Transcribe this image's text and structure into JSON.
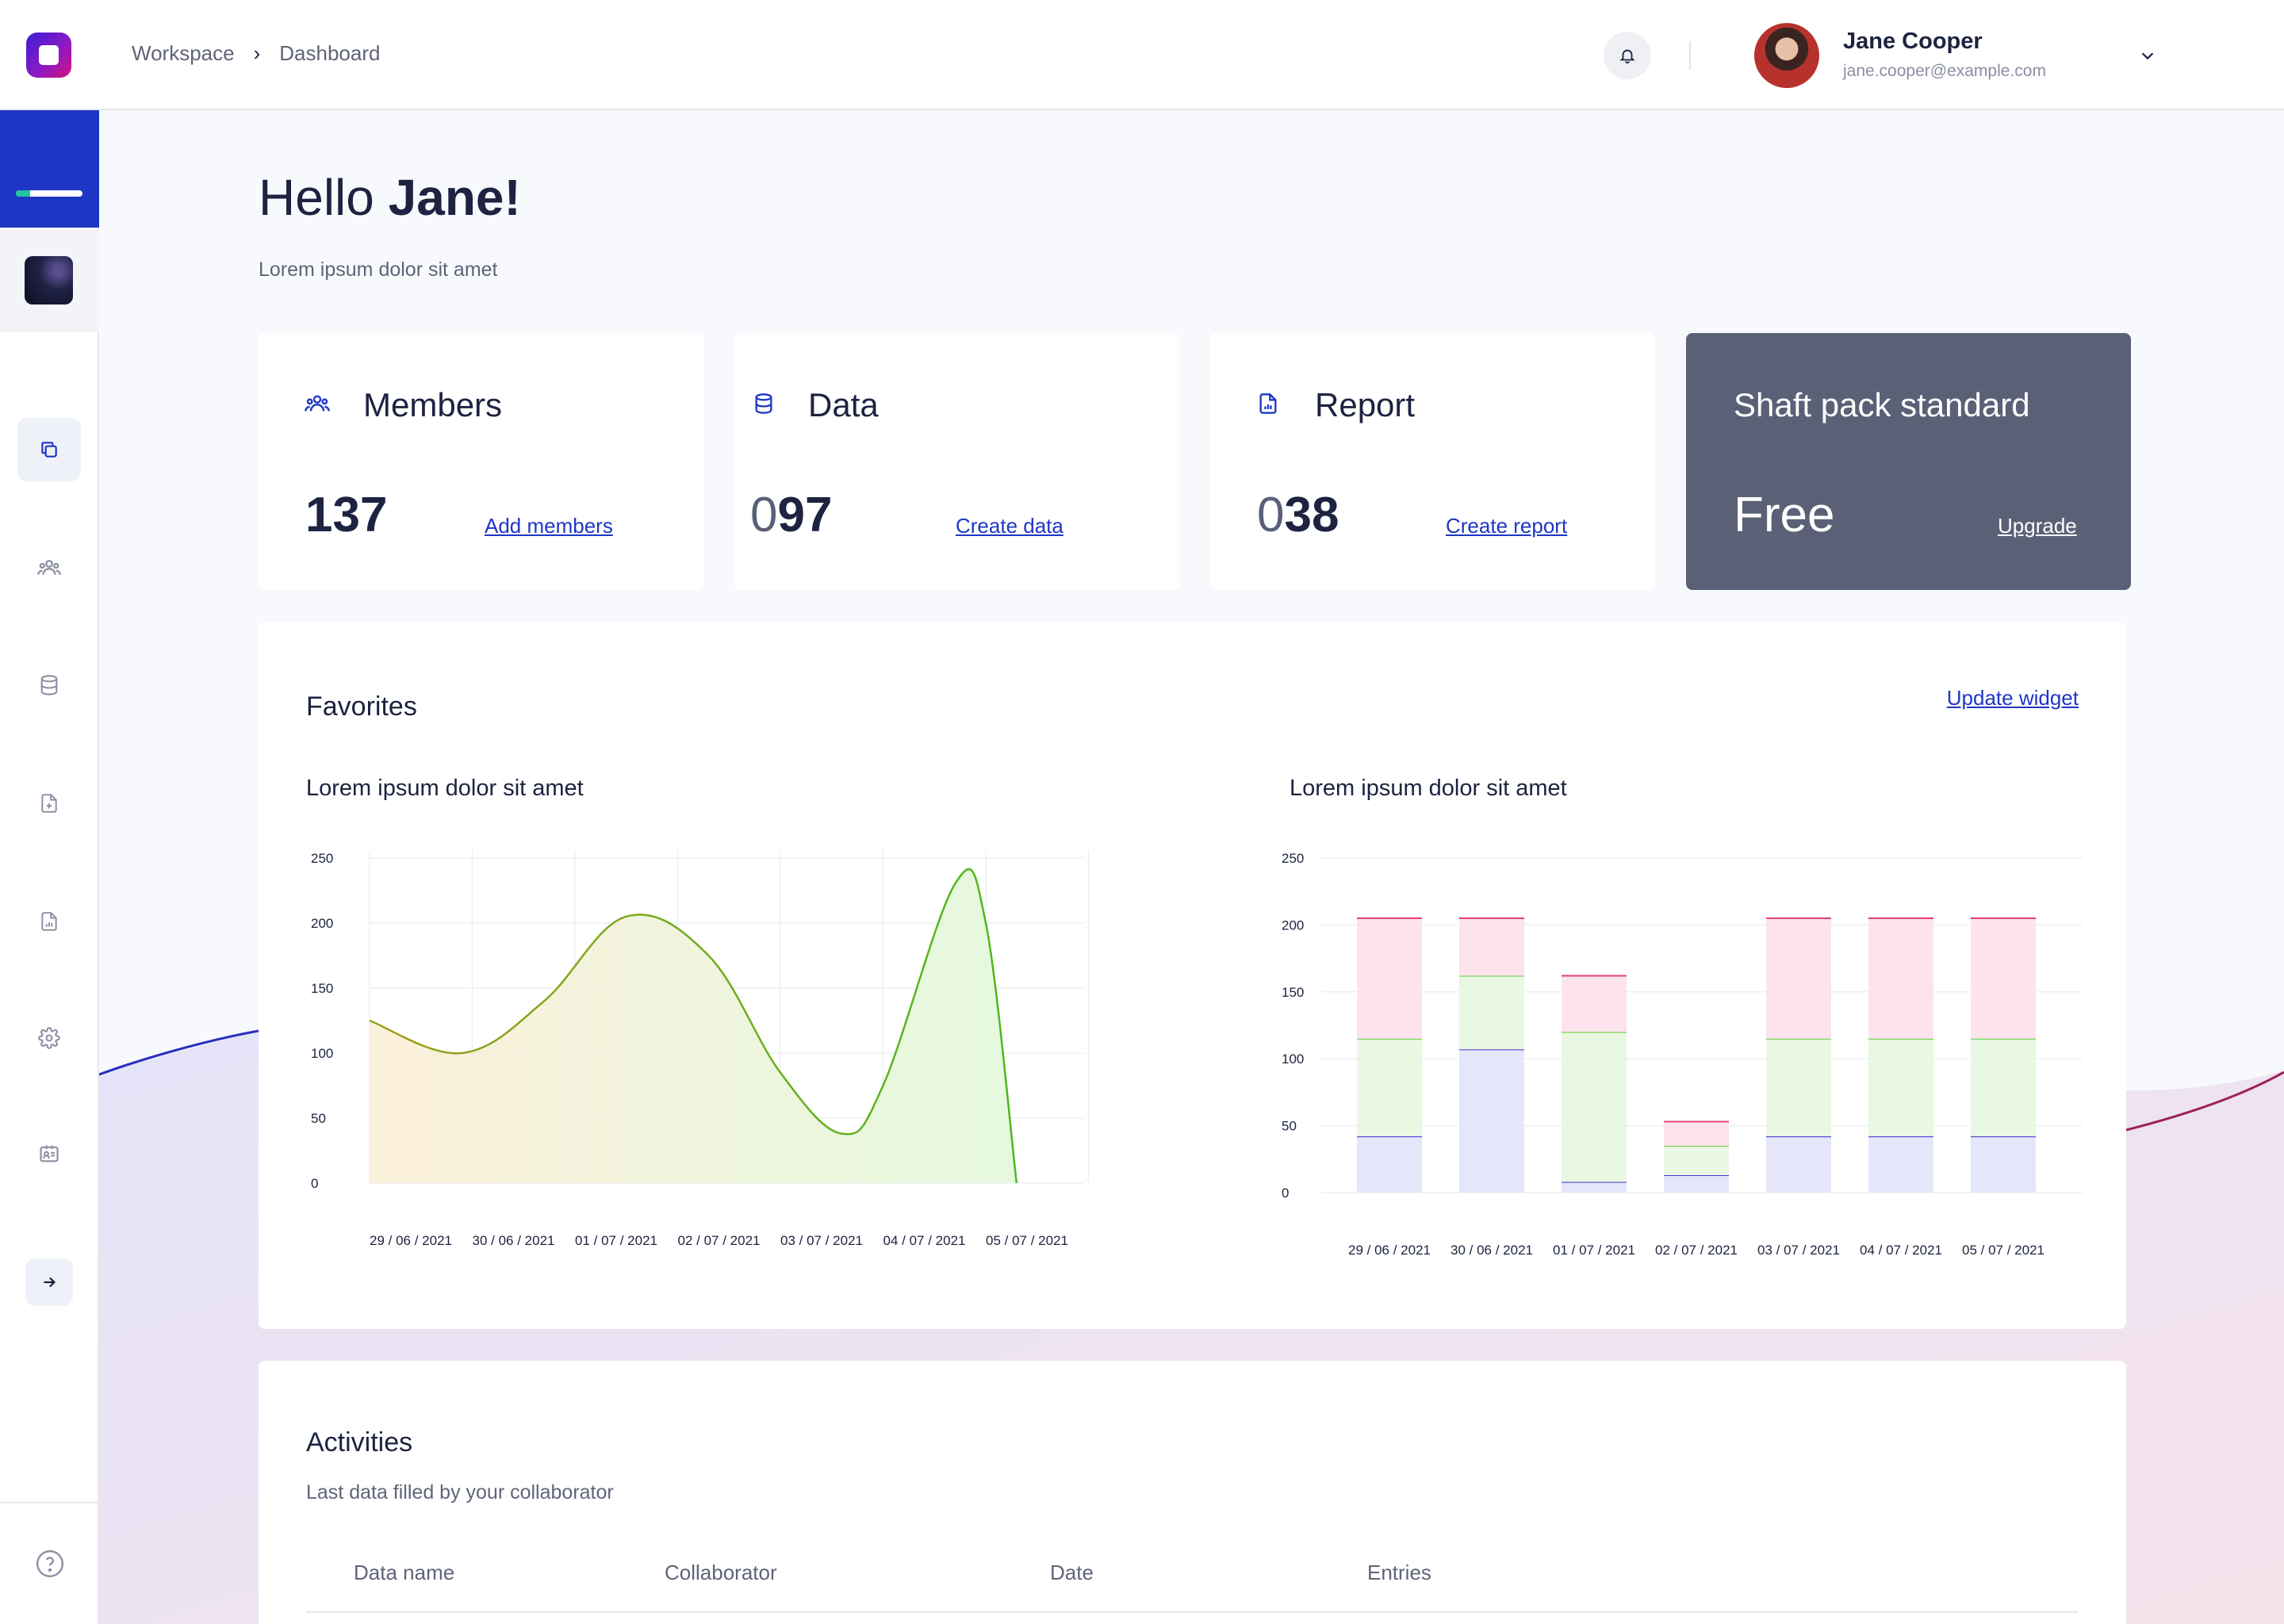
{
  "breadcrumb": {
    "workspace": "Workspace",
    "separator": "›",
    "current": "Dashboard"
  },
  "user": {
    "name": "Jane Cooper",
    "email": "jane.cooper@example.com"
  },
  "sidebar": {
    "progress": 0.22
  },
  "greeting": {
    "prefix": "Hello",
    "name": "Jane!",
    "subtitle": "Lorem ipsum dolor sit amet"
  },
  "cards": [
    {
      "title": "Members",
      "value_dim": "",
      "value": "137",
      "link": "Add members"
    },
    {
      "title": "Data",
      "value_dim": "0",
      "value": "97",
      "link": "Create data"
    },
    {
      "title": "Report",
      "value_dim": "0",
      "value": "38",
      "link": "Create report"
    },
    {
      "title": "Shaft pack standard",
      "value_dim": "",
      "value": "Free",
      "link": "Upgrade"
    }
  ],
  "favorites": {
    "title": "Favorites",
    "link": "Update  widget"
  },
  "chart_data": [
    {
      "type": "area",
      "title": "Lorem ipsum dolor sit amet",
      "x": [
        "29 / 06 / 2021",
        "30 / 06 / 2021",
        "01 / 07 / 2021",
        "02 / 07 / 2021",
        "03 / 07 / 2021",
        "04 / 07 / 2021",
        "05 / 07 / 2021"
      ],
      "ylim": [
        0,
        250
      ],
      "yticks": [
        0,
        50,
        100,
        150,
        200,
        250
      ],
      "points": [
        [
          0,
          125
        ],
        [
          0.9,
          100
        ],
        [
          1.7,
          140
        ],
        [
          2.5,
          205
        ],
        [
          3.3,
          175
        ],
        [
          4.0,
          85
        ],
        [
          4.6,
          38
        ],
        [
          5.0,
          75
        ],
        [
          5.7,
          230
        ],
        [
          6.0,
          200
        ],
        [
          6.3,
          0
        ]
      ],
      "color": "#4cb81c",
      "grid": true
    },
    {
      "type": "bar",
      "stacked": true,
      "title": "Lorem ipsum dolor sit amet",
      "categories": [
        "29 / 06 / 2021",
        "30 / 06 / 2021",
        "01 / 07 / 2021",
        "02 / 07 / 2021",
        "03 / 07 / 2021",
        "04 / 07 / 2021",
        "05 / 07 / 2021"
      ],
      "ylim": [
        0,
        250
      ],
      "yticks": [
        0,
        50,
        100,
        150,
        200,
        250
      ],
      "series": [
        {
          "values": [
            42,
            107,
            8,
            13,
            42,
            42,
            42
          ],
          "color": "#3b2fd0"
        },
        {
          "values": [
            73,
            55,
            112,
            22,
            73,
            73,
            73
          ],
          "color": "#5ed23a"
        },
        {
          "values": [
            90,
            43,
            42,
            18,
            90,
            90,
            90
          ],
          "color": "#e0407a"
        }
      ],
      "grid": true
    }
  ],
  "activities": {
    "title": "Activities",
    "subtitle": "Last data filled by your collaborator",
    "columns": [
      "Data name",
      "Collaborator",
      "Date",
      "Entries"
    ]
  }
}
